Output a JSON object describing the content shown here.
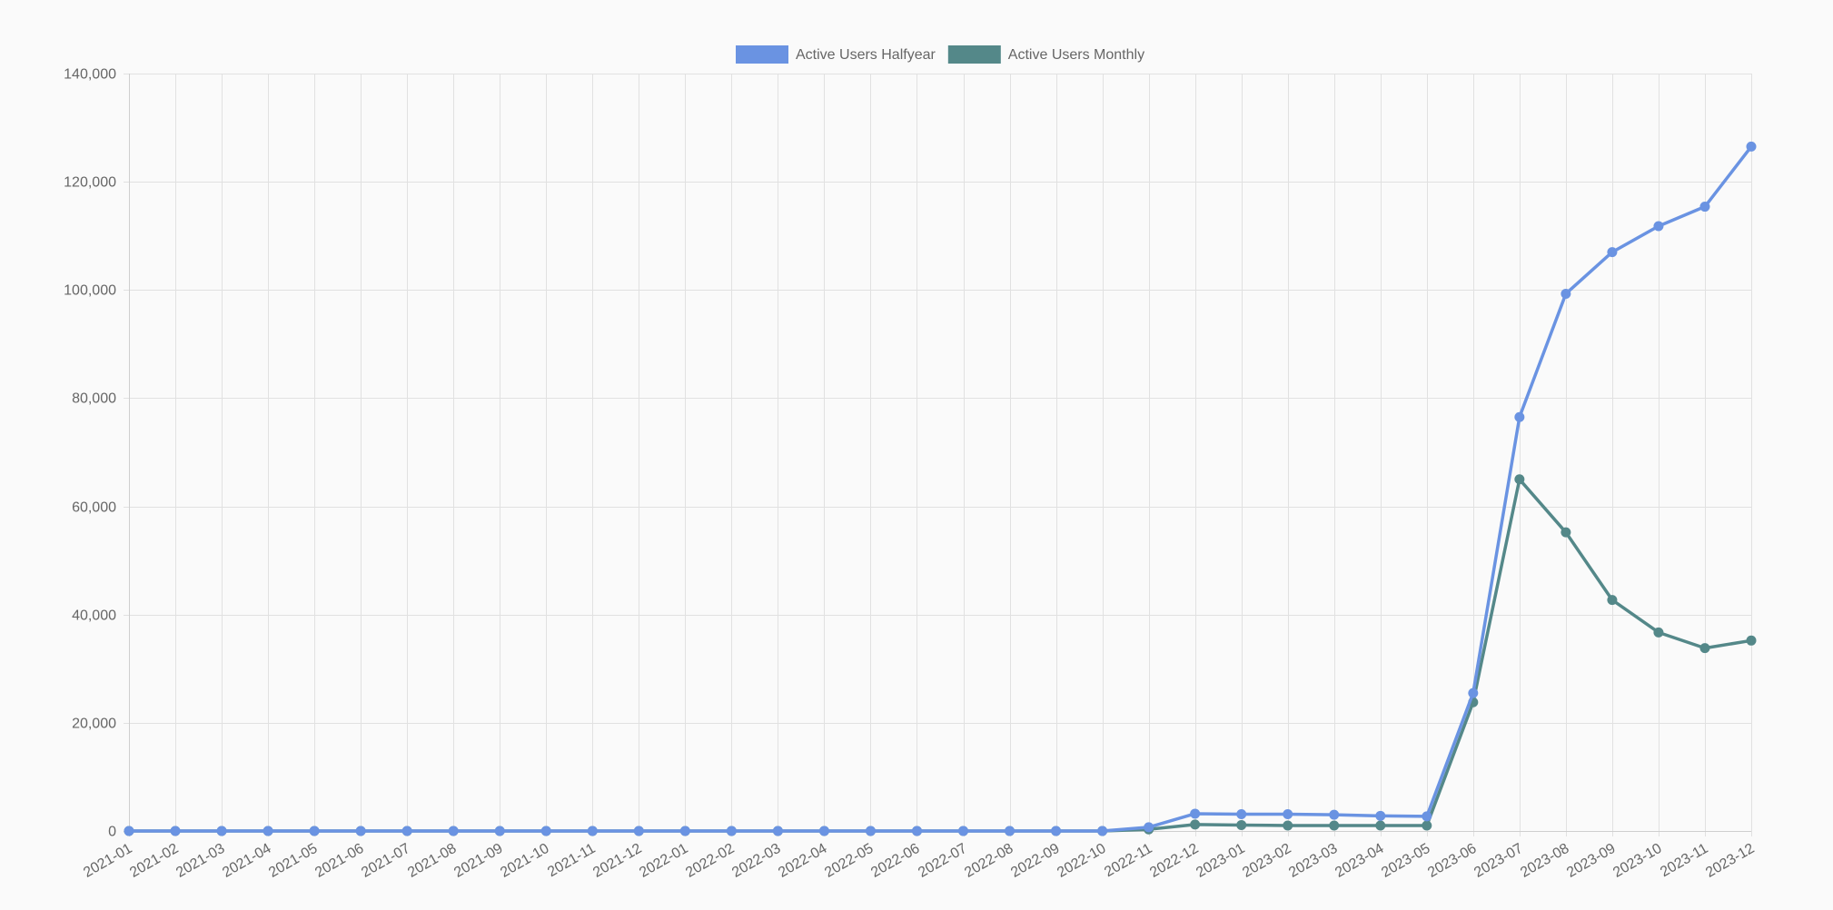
{
  "chart_data": {
    "type": "line",
    "title": "",
    "xlabel": "",
    "ylabel": "",
    "ylim": [
      0,
      140000
    ],
    "y_ticks": [
      0,
      20000,
      40000,
      60000,
      80000,
      100000,
      120000,
      140000
    ],
    "y_tick_labels": [
      "0",
      "20,000",
      "40,000",
      "60,000",
      "80,000",
      "100,000",
      "120,000",
      "140,000"
    ],
    "grid": true,
    "legend_position": "top-center",
    "categories": [
      "2021-01",
      "2021-02",
      "2021-03",
      "2021-04",
      "2021-05",
      "2021-06",
      "2021-07",
      "2021-08",
      "2021-09",
      "2021-10",
      "2021-11",
      "2021-12",
      "2022-01",
      "2022-02",
      "2022-03",
      "2022-04",
      "2022-05",
      "2022-06",
      "2022-07",
      "2022-08",
      "2022-09",
      "2022-10",
      "2022-11",
      "2022-12",
      "2023-01",
      "2023-02",
      "2023-03",
      "2023-04",
      "2023-05",
      "2023-06",
      "2023-07",
      "2023-08",
      "2023-09",
      "2023-10",
      "2023-11",
      "2023-12"
    ],
    "series": [
      {
        "name": "Active Users Halfyear",
        "color": "#6a93e2",
        "values": [
          0,
          0,
          0,
          0,
          0,
          0,
          0,
          0,
          0,
          0,
          0,
          0,
          0,
          0,
          0,
          0,
          0,
          0,
          0,
          0,
          0,
          0,
          700,
          3200,
          3100,
          3100,
          3000,
          2800,
          2700,
          25500,
          76500,
          99300,
          107000,
          111800,
          115400,
          126500
        ]
      },
      {
        "name": "Active Users Monthly",
        "color": "#548889",
        "values": [
          0,
          0,
          0,
          0,
          0,
          0,
          0,
          0,
          0,
          0,
          0,
          0,
          0,
          0,
          0,
          0,
          0,
          0,
          0,
          0,
          0,
          0,
          300,
          1200,
          1100,
          1000,
          1000,
          1000,
          1000,
          23800,
          65000,
          55200,
          42700,
          36700,
          33800,
          35200
        ]
      }
    ]
  }
}
